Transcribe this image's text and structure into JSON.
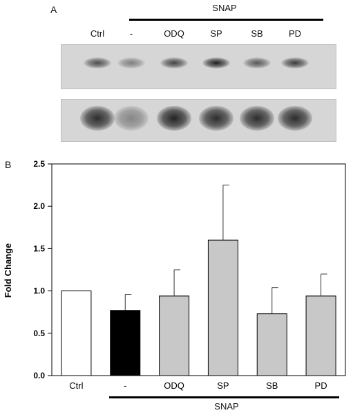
{
  "panel_a": {
    "letter": "A",
    "snap_label": "SNAP",
    "lanes": [
      {
        "label": "Ctrl",
        "top_band": 0.7,
        "bottom_band": 0.85
      },
      {
        "label": "-",
        "top_band": 0.45,
        "bottom_band": 0.4
      },
      {
        "label": "ODQ",
        "top_band": 0.75,
        "bottom_band": 0.9
      },
      {
        "label": "SP",
        "top_band": 0.95,
        "bottom_band": 0.85
      },
      {
        "label": "SB",
        "top_band": 0.65,
        "bottom_band": 0.85
      },
      {
        "label": "PD",
        "top_band": 0.8,
        "bottom_band": 0.85
      }
    ]
  },
  "panel_b": {
    "letter": "B",
    "snap_label": "SNAP"
  },
  "chart_data": {
    "type": "bar",
    "categories": [
      "Ctrl",
      "-",
      "ODQ",
      "SP",
      "SB",
      "PD"
    ],
    "values": [
      1.0,
      0.77,
      0.94,
      1.6,
      0.73,
      0.94
    ],
    "errors": [
      0,
      0.19,
      0.31,
      0.65,
      0.31,
      0.26
    ],
    "bar_colors": [
      "#ffffff",
      "#000000",
      "#c8c8c8",
      "#c8c8c8",
      "#c8c8c8",
      "#c8c8c8"
    ],
    "ylabel": "Fold Change",
    "ylim": [
      0,
      2.5
    ],
    "yticks": [
      0.0,
      0.5,
      1.0,
      1.5,
      2.0,
      2.5
    ],
    "ytick_labels": [
      "0.0",
      "0.5",
      "1.0",
      "1.5",
      "2.0",
      "2.5"
    ],
    "grid": false
  }
}
